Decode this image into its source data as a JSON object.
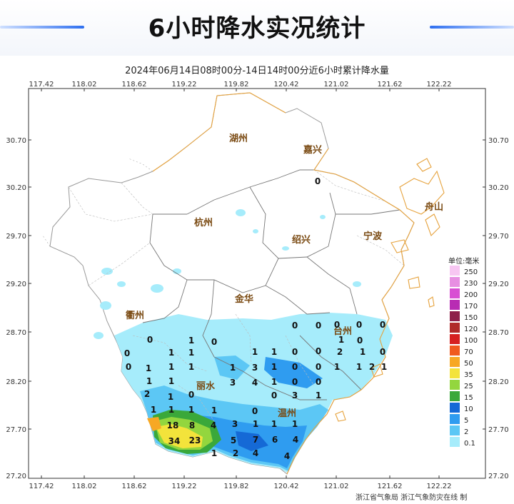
{
  "title": "6小时降水实况统计",
  "subtitle": "2024年06月14日08时00分-14日14时00分近6小时累计降水量",
  "x_ticks": [
    "117.42",
    "118.02",
    "118.62",
    "119.22",
    "119.82",
    "120.42",
    "121.02",
    "121.62",
    "122.22"
  ],
  "y_ticks": [
    "30.70",
    "30.20",
    "29.70",
    "29.20",
    "28.70",
    "28.20",
    "27.70",
    "27.20"
  ],
  "cities": [
    {
      "name": "湖州"
    },
    {
      "name": "嘉兴"
    },
    {
      "name": "杭州"
    },
    {
      "name": "舟山"
    },
    {
      "name": "绍兴"
    },
    {
      "name": "宁波"
    },
    {
      "name": "金华"
    },
    {
      "name": "衢州"
    },
    {
      "name": "台州"
    },
    {
      "name": "丽水"
    },
    {
      "name": "温州"
    }
  ],
  "legend": {
    "unit": "单位:毫米",
    "items": [
      {
        "label": "250",
        "color": "#f7c6f2"
      },
      {
        "label": "230",
        "color": "#e78fe2"
      },
      {
        "label": "200",
        "color": "#d84fd3"
      },
      {
        "label": "170",
        "color": "#b82cb3"
      },
      {
        "label": "150",
        "color": "#8e1f4a"
      },
      {
        "label": "120",
        "color": "#b02a2a"
      },
      {
        "label": "100",
        "color": "#d62020"
      },
      {
        "label": "70",
        "color": "#f05a1e"
      },
      {
        "label": "50",
        "color": "#f7a824"
      },
      {
        "label": "35",
        "color": "#f3e33b"
      },
      {
        "label": "25",
        "color": "#93d63e"
      },
      {
        "label": "15",
        "color": "#3aa83a"
      },
      {
        "label": "10",
        "color": "#1569d6"
      },
      {
        "label": "5",
        "color": "#2f9cf0"
      },
      {
        "label": "2",
        "color": "#5cc7f5"
      },
      {
        "label": "0.1",
        "color": "#a6ecfb"
      }
    ]
  },
  "station_values": [
    "0",
    "0",
    "1",
    "0",
    "0",
    "0",
    "0",
    "0",
    "0",
    "0",
    "0",
    "1",
    "1",
    "1",
    "0",
    "2",
    "1",
    "0",
    "0",
    "1",
    "1",
    "1",
    "3",
    "1",
    "0",
    "0",
    "1",
    "1",
    "2",
    "1",
    "1",
    "1",
    "1",
    "1",
    "0",
    "3",
    "4",
    "1",
    "0",
    "0",
    "2",
    "1",
    "0",
    "0",
    "3",
    "1",
    "1",
    "1",
    "0",
    "1",
    "1",
    "1",
    "18",
    "8",
    "4",
    "3",
    "1",
    "1",
    "1",
    "34",
    "23",
    "5",
    "7",
    "6",
    "4",
    "1",
    "2",
    "4",
    "4"
  ],
  "credits": "浙江省气象局   浙江气象防灾在线 制",
  "colors": {
    "boundary": "#777777",
    "coast": "#e6a23c",
    "city_label": "#7a4a12"
  }
}
